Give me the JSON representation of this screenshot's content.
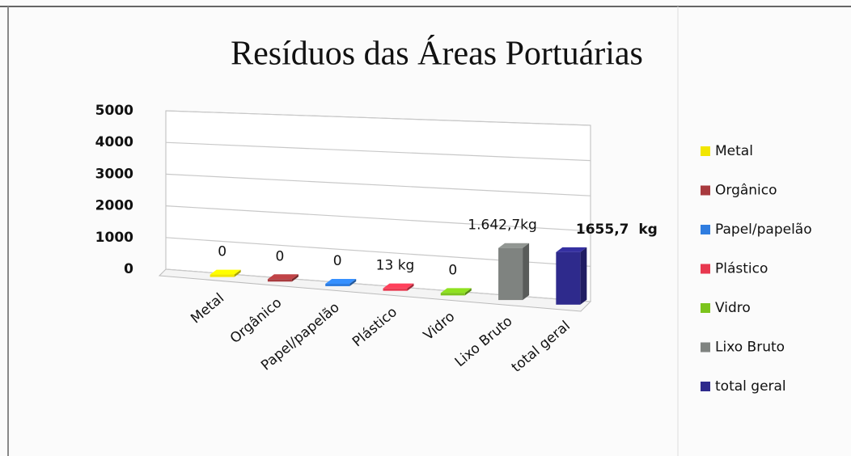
{
  "chart_data": {
    "type": "bar3d",
    "title": "Resíduos das Áreas Portuárias",
    "categories": [
      "Metal",
      "Orgânico",
      "Papel/papelão",
      "Plástico",
      "Vidro",
      "Lixo Bruto",
      "total geral"
    ],
    "values": [
      0,
      0,
      0,
      13,
      0,
      1642.7,
      1655.7
    ],
    "value_labels": [
      "0",
      "0",
      "0",
      "13 kg",
      "0",
      "1.642,7kg",
      "1655,7  kg"
    ],
    "colors": [
      "#f2e600",
      "#a83a3e",
      "#2f7de0",
      "#e8384f",
      "#7cc41c",
      "#7f8380",
      "#2e2a8c"
    ],
    "ylim": [
      0,
      5000
    ],
    "yticks": [
      0,
      1000,
      2000,
      3000,
      4000,
      5000
    ],
    "grid": true,
    "legend": "right"
  }
}
